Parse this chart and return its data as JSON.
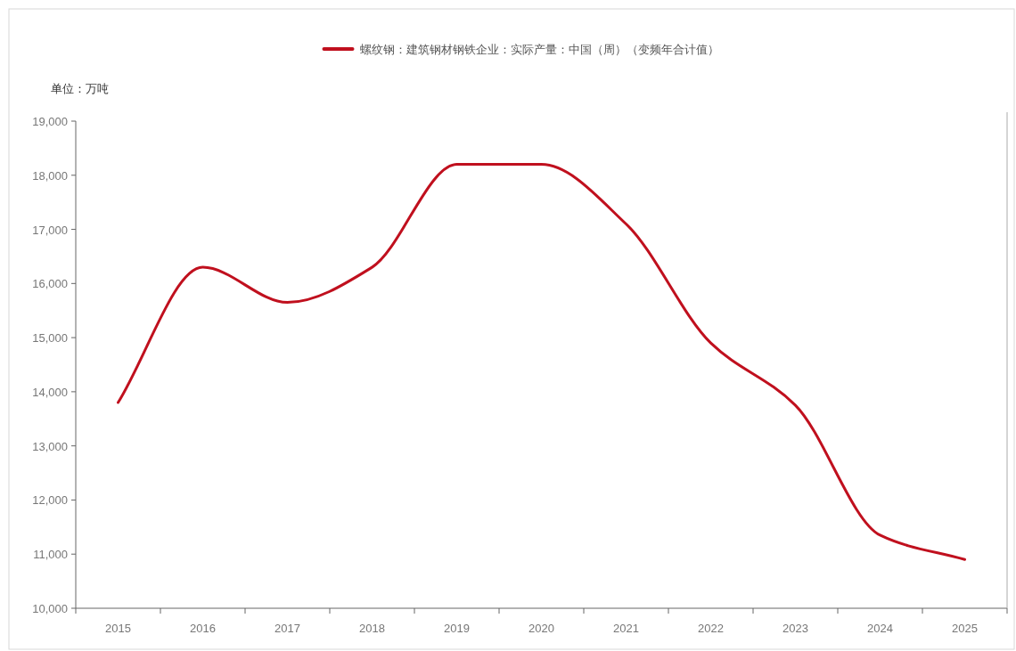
{
  "chart_data": {
    "type": "line",
    "categories": [
      "2015",
      "2016",
      "2017",
      "2018",
      "2019",
      "2020",
      "2021",
      "2022",
      "2023",
      "2024",
      "2025"
    ],
    "series": [
      {
        "name": "螺纹钢：建筑钢材钢铁企业：实际产量：中国（周）（变频年合计值）",
        "color": "#c0101e",
        "values": [
          13800,
          16300,
          15650,
          16300,
          18200,
          18200,
          17100,
          14900,
          13750,
          11350,
          10900
        ]
      }
    ],
    "ylim": [
      10000,
      19000
    ],
    "yticks": [
      {
        "value": 10000,
        "label": "10,000"
      },
      {
        "value": 11000,
        "label": "11,000"
      },
      {
        "value": 12000,
        "label": "12,000"
      },
      {
        "value": 13000,
        "label": "13,000"
      },
      {
        "value": 14000,
        "label": "14,000"
      },
      {
        "value": 15000,
        "label": "15,000"
      },
      {
        "value": 16000,
        "label": "16,000"
      },
      {
        "value": 17000,
        "label": "17,000"
      },
      {
        "value": 18000,
        "label": "18,000"
      },
      {
        "value": 19000,
        "label": "19,000"
      }
    ],
    "annotations": [
      "单位：万吨"
    ],
    "legend": "top",
    "grid": false,
    "marker": "none",
    "line_style": "solid"
  }
}
